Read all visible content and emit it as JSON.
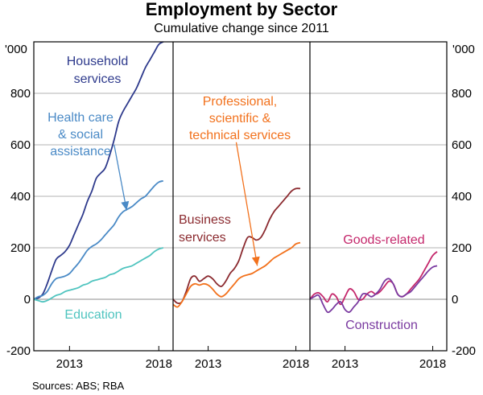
{
  "chart_data": {
    "type": "line",
    "title": "Employment by Sector",
    "subtitle": "Cumulative change since 2011",
    "unit_label_left": "'000",
    "unit_label_right": "'000",
    "ylim": [
      -200,
      1000
    ],
    "yticks": [
      -200,
      0,
      200,
      400,
      600,
      800,
      1000
    ],
    "ytick_labels": [
      "-200",
      "0",
      "200",
      "400",
      "600",
      "800",
      ""
    ],
    "xlim": [
      2011,
      2018.8
    ],
    "xticks": [
      2013,
      2018
    ],
    "xtick_labels": [
      "2013",
      "2018"
    ],
    "source": "Sources: ABS; RBA",
    "colors": {
      "household": "#2e3a8c",
      "health": "#4a8ac6",
      "education": "#4fc4bf",
      "business": "#8b2a2f",
      "professional": "#f2711c",
      "goods": "#c4276b",
      "construction": "#7a3aa0",
      "grid": "#b3b3b3",
      "frame": "#000000"
    },
    "panels": [
      {
        "id": "services-1",
        "series": [
          {
            "name": "Household services",
            "label_lines": [
              "Household",
              "services"
            ],
            "color_key": "household",
            "x": [
              2011,
              2011.25,
              2011.5,
              2011.75,
              2012,
              2012.25,
              2012.5,
              2012.75,
              2013,
              2013.25,
              2013.5,
              2013.75,
              2014,
              2014.25,
              2014.5,
              2014.75,
              2015,
              2015.25,
              2015.5,
              2015.75,
              2016,
              2016.25,
              2016.5,
              2016.75,
              2017,
              2017.25,
              2017.5,
              2017.75,
              2018,
              2018.25
            ],
            "values": [
              0,
              5,
              20,
              60,
              110,
              155,
              170,
              185,
              210,
              250,
              290,
              330,
              380,
              420,
              470,
              490,
              510,
              560,
              620,
              690,
              730,
              760,
              790,
              820,
              860,
              900,
              930,
              960,
              990,
              1000
            ]
          },
          {
            "name": "Health care & social assistance",
            "label_lines": [
              "Health care",
              "& social",
              "assistance"
            ],
            "color_key": "health",
            "x": [
              2011,
              2011.25,
              2011.5,
              2011.75,
              2012,
              2012.25,
              2012.5,
              2012.75,
              2013,
              2013.25,
              2013.5,
              2013.75,
              2014,
              2014.25,
              2014.5,
              2014.75,
              2015,
              2015.25,
              2015.5,
              2015.75,
              2016,
              2016.25,
              2016.5,
              2016.75,
              2017,
              2017.25,
              2017.5,
              2017.75,
              2018,
              2018.25
            ],
            "values": [
              0,
              10,
              15,
              30,
              60,
              80,
              85,
              90,
              100,
              120,
              140,
              165,
              190,
              205,
              215,
              230,
              250,
              270,
              290,
              320,
              340,
              350,
              360,
              375,
              390,
              400,
              420,
              440,
              455,
              460
            ]
          },
          {
            "name": "Education",
            "label_lines": [
              "Education"
            ],
            "color_key": "education",
            "x": [
              2011,
              2011.25,
              2011.5,
              2011.75,
              2012,
              2012.25,
              2012.5,
              2012.75,
              2013,
              2013.25,
              2013.5,
              2013.75,
              2014,
              2014.25,
              2014.5,
              2014.75,
              2015,
              2015.25,
              2015.5,
              2015.75,
              2016,
              2016.25,
              2016.5,
              2016.75,
              2017,
              2017.25,
              2017.5,
              2017.75,
              2018,
              2018.25
            ],
            "values": [
              0,
              -5,
              -10,
              -5,
              5,
              15,
              20,
              30,
              35,
              40,
              45,
              55,
              60,
              70,
              75,
              80,
              85,
              95,
              100,
              110,
              120,
              125,
              130,
              140,
              150,
              160,
              170,
              185,
              195,
              200
            ]
          }
        ],
        "annotations": [
          {
            "text": "",
            "arrow_from": [
              2015.5,
              600
            ],
            "arrow_to": [
              2016.2,
              345
            ],
            "color_key": "health"
          }
        ]
      },
      {
        "id": "services-2",
        "series": [
          {
            "name": "Business services",
            "label_lines": [
              "Business",
              "services"
            ],
            "color_key": "business",
            "x": [
              2011,
              2011.25,
              2011.5,
              2011.75,
              2012,
              2012.25,
              2012.5,
              2012.75,
              2013,
              2013.25,
              2013.5,
              2013.75,
              2014,
              2014.25,
              2014.5,
              2014.75,
              2015,
              2015.25,
              2015.5,
              2015.75,
              2016,
              2016.25,
              2016.5,
              2016.75,
              2017,
              2017.25,
              2017.5,
              2017.75,
              2018,
              2018.25
            ],
            "values": [
              0,
              -15,
              -10,
              30,
              80,
              90,
              70,
              80,
              90,
              80,
              60,
              50,
              70,
              100,
              120,
              150,
              200,
              240,
              240,
              230,
              240,
              270,
              310,
              340,
              360,
              380,
              400,
              420,
              430,
              430
            ]
          },
          {
            "name": "Professional, scientific & technical services",
            "label_lines": [
              "Professional,",
              "scientific &",
              "technical services"
            ],
            "color_key": "professional",
            "x": [
              2011,
              2011.25,
              2011.5,
              2011.75,
              2012,
              2012.25,
              2012.5,
              2012.75,
              2013,
              2013.25,
              2013.5,
              2013.75,
              2014,
              2014.25,
              2014.5,
              2014.75,
              2015,
              2015.25,
              2015.5,
              2015.75,
              2016,
              2016.25,
              2016.5,
              2016.75,
              2017,
              2017.25,
              2017.5,
              2017.75,
              2018,
              2018.25
            ],
            "values": [
              -20,
              -30,
              -10,
              20,
              50,
              60,
              55,
              60,
              55,
              40,
              20,
              10,
              20,
              40,
              60,
              80,
              90,
              95,
              100,
              110,
              120,
              130,
              145,
              160,
              170,
              180,
              190,
              200,
              215,
              220
            ]
          }
        ],
        "annotations": [
          {
            "text": "",
            "arrow_from": [
              2014.6,
              610
            ],
            "arrow_to": [
              2015.8,
              130
            ],
            "color_key": "professional"
          }
        ]
      },
      {
        "id": "goods",
        "series": [
          {
            "name": "Goods-related",
            "label_lines": [
              "Goods-related"
            ],
            "color_key": "goods",
            "x": [
              2011,
              2011.25,
              2011.5,
              2011.75,
              2012,
              2012.25,
              2012.5,
              2012.75,
              2013,
              2013.25,
              2013.5,
              2013.75,
              2014,
              2014.25,
              2014.5,
              2014.75,
              2015,
              2015.25,
              2015.5,
              2015.75,
              2016,
              2016.25,
              2016.5,
              2016.75,
              2017,
              2017.25,
              2017.5,
              2017.75,
              2018,
              2018.25
            ],
            "values": [
              0,
              20,
              25,
              10,
              -10,
              20,
              10,
              -20,
              10,
              40,
              30,
              0,
              0,
              20,
              30,
              20,
              30,
              50,
              70,
              60,
              20,
              10,
              20,
              40,
              60,
              80,
              110,
              140,
              170,
              185
            ]
          },
          {
            "name": "Construction",
            "label_lines": [
              "Construction"
            ],
            "color_key": "construction",
            "x": [
              2011,
              2011.25,
              2011.5,
              2011.75,
              2012,
              2012.25,
              2012.5,
              2012.75,
              2013,
              2013.25,
              2013.5,
              2013.75,
              2014,
              2014.25,
              2014.5,
              2014.75,
              2015,
              2015.25,
              2015.5,
              2015.75,
              2016,
              2016.25,
              2016.5,
              2016.75,
              2017,
              2017.25,
              2017.5,
              2017.75,
              2018,
              2018.25
            ],
            "values": [
              0,
              10,
              15,
              -20,
              -50,
              -40,
              -20,
              -10,
              -40,
              -50,
              -30,
              -10,
              20,
              20,
              10,
              20,
              40,
              70,
              80,
              60,
              20,
              10,
              20,
              30,
              50,
              70,
              90,
              110,
              125,
              130
            ]
          }
        ],
        "annotations": []
      }
    ]
  }
}
